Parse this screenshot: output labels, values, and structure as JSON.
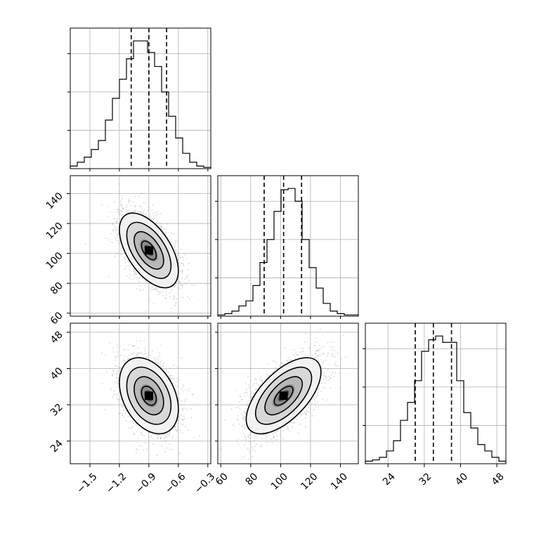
{
  "chart_data": {
    "type": "corner",
    "grid": true,
    "params": [
      {
        "range": [
          -1.7,
          -0.27
        ],
        "ticks": [
          -1.5,
          -1.2,
          -0.9,
          -0.6,
          -0.3
        ],
        "tick_labels": [
          "−1.5",
          "−1.2",
          "−0.9",
          "−0.6",
          "−0.3"
        ],
        "quantiles": [
          -1.08,
          -0.9,
          -0.72
        ]
      },
      {
        "range": [
          58,
          152
        ],
        "ticks": [
          60,
          80,
          100,
          120,
          140
        ],
        "tick_labels": [
          "60",
          "80",
          "100",
          "120",
          "140"
        ],
        "quantiles": [
          89,
          102,
          114
        ]
      },
      {
        "range": [
          19,
          50
        ],
        "ticks": [
          24,
          32,
          40,
          48
        ],
        "tick_labels": [
          "24",
          "32",
          "40",
          "48"
        ],
        "quantiles": [
          30,
          34,
          38
        ]
      }
    ],
    "histograms": [
      {
        "param": 0,
        "edges_start": -1.7,
        "bin_width": 0.0715,
        "counts": [
          2,
          5,
          9,
          15,
          22,
          38,
          55,
          70,
          86,
          100,
          100,
          91,
          80,
          60,
          41,
          24,
          12,
          5,
          2,
          1
        ],
        "max_ticks": [
          30,
          60,
          90
        ]
      },
      {
        "param": 1,
        "edges_start": 58,
        "bin_width": 4.7,
        "counts": [
          1,
          2,
          4,
          8,
          12,
          24,
          42,
          60,
          82,
          99,
          100,
          90,
          60,
          38,
          22,
          10,
          4,
          2,
          1,
          1
        ],
        "max_ticks": [
          30,
          60,
          90
        ]
      },
      {
        "param": 2,
        "edges_start": 19,
        "bin_width": 1.55,
        "counts": [
          2,
          3,
          5,
          10,
          18,
          34,
          48,
          65,
          88,
          97,
          100,
          95,
          95,
          65,
          40,
          28,
          15,
          10,
          5,
          2
        ],
        "max_ticks": [
          30,
          60,
          90
        ]
      }
    ],
    "pairs": [
      {
        "x": 0,
        "y": 1,
        "mean": [
          -0.9,
          102
        ],
        "sd": [
          0.15,
          12.5
        ],
        "rho": -0.55
      },
      {
        "x": 0,
        "y": 2,
        "mean": [
          -0.9,
          34
        ],
        "sd": [
          0.15,
          4.2
        ],
        "rho": -0.35
      },
      {
        "x": 1,
        "y": 2,
        "mean": [
          102,
          34
        ],
        "sd": [
          12.5,
          4.2
        ],
        "rho": 0.62
      }
    ],
    "contour_sigmas": [
      0.5,
      1.0,
      1.5,
      2.0
    ],
    "colors": {
      "line": "#000000",
      "grid": "#b0b0b0",
      "points": "#808080"
    }
  }
}
